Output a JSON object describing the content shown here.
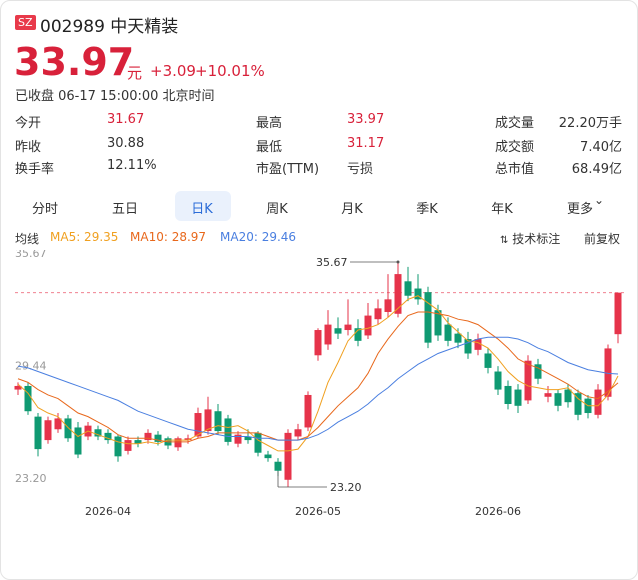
{
  "header": {
    "badge": "SZ",
    "code_name": "002989 中天精装",
    "price": 33.97,
    "unit": "元",
    "change": "+3.09",
    "change_pct": "+10.01%",
    "status": "已收盘 06-17 15:00:00 北京时间"
  },
  "stats": [
    [
      {
        "label": "今开",
        "value": 31.67,
        "red": true
      },
      {
        "label": "最高",
        "value": 33.97,
        "red": true
      },
      {
        "label": "成交量",
        "value": "22.20万手"
      }
    ],
    [
      {
        "label": "昨收",
        "value": 30.88
      },
      {
        "label": "最低",
        "value": 31.17,
        "red": true
      },
      {
        "label": "成交额",
        "value": "7.40亿"
      }
    ],
    [
      {
        "label": "换手率",
        "value": "12.11%"
      },
      {
        "label": "市盈(TTM)",
        "value": "亏损"
      },
      {
        "label": "总市值",
        "value": "68.49亿"
      }
    ]
  ],
  "tabs": [
    "分时",
    "五日",
    "日K",
    "周K",
    "月K",
    "季K",
    "年K",
    "更多"
  ],
  "active_tab": "日K",
  "indicator_bar": {
    "label": "均线",
    "tech_mark": "技术标注",
    "adjust": "前复权"
  },
  "chart_data": {
    "type": "candlestick",
    "up_color": "#e6334a",
    "down_color": "#0f9a72",
    "ylim": [
      23.2,
      35.67
    ],
    "yticks": [
      35.67,
      29.44,
      {
        "value": 23.2,
        "label": "23.20"
      }
    ],
    "high_label": "35.67",
    "low_label": "23.20",
    "categories": [
      null,
      null,
      null,
      null,
      null,
      null,
      null,
      null,
      null,
      "2026-04",
      null,
      null,
      null,
      null,
      null,
      null,
      null,
      null,
      null,
      null,
      null,
      null,
      null,
      null,
      null,
      null,
      null,
      null,
      null,
      null,
      "2026-05",
      null,
      null,
      null,
      null,
      null,
      null,
      null,
      null,
      null,
      null,
      null,
      null,
      null,
      null,
      null,
      null,
      null,
      "2026-06",
      null,
      null,
      null,
      null,
      null,
      null,
      null,
      null,
      null,
      null,
      null,
      null
    ],
    "ohlc": [
      [
        28.6,
        29.0,
        28.3,
        28.8
      ],
      [
        28.8,
        29.0,
        27.2,
        27.4
      ],
      [
        27.1,
        27.3,
        24.9,
        25.3
      ],
      [
        25.8,
        27.1,
        25.6,
        26.9
      ],
      [
        26.4,
        27.3,
        26.2,
        27.0
      ],
      [
        27.0,
        27.2,
        25.7,
        25.9
      ],
      [
        26.5,
        26.8,
        24.8,
        25.0
      ],
      [
        26.0,
        26.8,
        25.8,
        26.6
      ],
      [
        26.4,
        26.6,
        25.8,
        26.0
      ],
      [
        26.2,
        26.4,
        25.6,
        25.8
      ],
      [
        26.0,
        26.1,
        24.6,
        24.9
      ],
      [
        25.2,
        26.0,
        25.0,
        25.8
      ],
      [
        25.8,
        26.0,
        25.4,
        25.6
      ],
      [
        25.8,
        26.4,
        25.6,
        26.2
      ],
      [
        26.1,
        26.3,
        25.5,
        25.7
      ],
      [
        25.9,
        26.0,
        25.3,
        25.5
      ],
      [
        25.4,
        26.0,
        25.2,
        25.9
      ],
      [
        25.8,
        26.1,
        25.6,
        25.9
      ],
      [
        26.0,
        27.6,
        25.9,
        27.3
      ],
      [
        26.3,
        28.2,
        26.1,
        27.5
      ],
      [
        27.4,
        27.8,
        26.1,
        26.3
      ],
      [
        27.0,
        27.2,
        25.5,
        25.7
      ],
      [
        25.6,
        26.3,
        25.4,
        26.1
      ],
      [
        26.0,
        26.4,
        25.6,
        25.8
      ],
      [
        26.2,
        26.3,
        24.9,
        25.1
      ],
      [
        25.0,
        25.2,
        24.6,
        24.8
      ],
      [
        24.6,
        24.8,
        23.8,
        24.1
      ],
      [
        23.6,
        26.4,
        23.2,
        26.2
      ],
      [
        26.0,
        26.7,
        25.8,
        26.4
      ],
      [
        26.5,
        28.5,
        26.3,
        28.3
      ],
      [
        30.5,
        32.0,
        30.2,
        31.9
      ],
      [
        31.1,
        33.0,
        30.8,
        32.2
      ],
      [
        32.0,
        32.6,
        31.4,
        31.7
      ],
      [
        31.9,
        33.6,
        31.6,
        32.2
      ],
      [
        32.0,
        32.5,
        31.0,
        31.3
      ],
      [
        31.6,
        33.4,
        31.4,
        32.7
      ],
      [
        32.5,
        33.6,
        32.2,
        33.1
      ],
      [
        32.9,
        35.0,
        32.6,
        33.6
      ],
      [
        32.8,
        35.67,
        32.6,
        35.0
      ],
      [
        34.6,
        35.4,
        33.5,
        33.8
      ],
      [
        34.2,
        35.0,
        33.3,
        33.6
      ],
      [
        34.0,
        34.3,
        30.9,
        31.2
      ],
      [
        33.0,
        33.3,
        31.3,
        31.6
      ],
      [
        32.2,
        32.6,
        31.0,
        31.3
      ],
      [
        31.7,
        32.0,
        30.9,
        31.2
      ],
      [
        31.4,
        31.8,
        30.3,
        30.6
      ],
      [
        30.8,
        31.7,
        30.5,
        31.4
      ],
      [
        30.6,
        30.9,
        29.5,
        29.8
      ],
      [
        29.6,
        29.9,
        28.3,
        28.6
      ],
      [
        28.8,
        29.1,
        27.5,
        27.8
      ],
      [
        28.6,
        28.9,
        27.3,
        27.7
      ],
      [
        28.0,
        30.5,
        27.8,
        30.2
      ],
      [
        30.0,
        30.3,
        28.9,
        29.2
      ],
      [
        28.2,
        28.8,
        27.9,
        28.4
      ],
      [
        28.4,
        28.6,
        27.4,
        27.7
      ],
      [
        28.6,
        28.9,
        27.6,
        27.9
      ],
      [
        28.4,
        28.6,
        26.9,
        27.2
      ],
      [
        28.1,
        28.3,
        27.0,
        27.3
      ],
      [
        27.2,
        28.9,
        27.0,
        28.6
      ],
      [
        28.2,
        31.1,
        28.0,
        30.88
      ],
      [
        31.67,
        33.97,
        31.17,
        33.97
      ]
    ],
    "series": [
      {
        "name": "MA5",
        "legend_label": "MA5: 29.35",
        "color": "#f0a020",
        "values": [
          28.9,
          28.4,
          27.6,
          27.3,
          27.1,
          26.5,
          26.0,
          26.3,
          26.1,
          25.9,
          25.7,
          25.6,
          25.6,
          25.7,
          25.6,
          25.8,
          25.8,
          25.8,
          26.1,
          26.4,
          26.6,
          26.5,
          26.6,
          26.3,
          25.8,
          25.5,
          25.2,
          25.2,
          25.3,
          26.0,
          27.4,
          29.0,
          30.1,
          31.3,
          31.9,
          32.0,
          32.2,
          32.6,
          33.1,
          33.6,
          33.8,
          33.4,
          33.0,
          32.3,
          31.8,
          31.3,
          31.2,
          30.9,
          30.3,
          29.6,
          29.1,
          28.8,
          28.7,
          28.6,
          28.6,
          28.7,
          28.1,
          27.7,
          27.7,
          28.3,
          29.35
        ]
      },
      {
        "name": "MA10",
        "legend_label": "MA10: 28.97",
        "color": "#e8681c",
        "values": [
          29.2,
          29.0,
          28.6,
          28.3,
          28.1,
          27.7,
          27.3,
          27.1,
          26.8,
          26.5,
          26.1,
          25.9,
          25.9,
          25.9,
          25.8,
          25.7,
          25.7,
          25.7,
          25.9,
          26.0,
          26.2,
          26.2,
          26.2,
          26.2,
          26.2,
          26.0,
          25.8,
          25.8,
          25.8,
          26.0,
          26.5,
          27.1,
          27.7,
          28.2,
          28.7,
          29.5,
          30.6,
          31.4,
          32.1,
          32.7,
          32.9,
          32.9,
          32.8,
          32.7,
          32.5,
          32.4,
          32.2,
          31.8,
          31.4,
          30.9,
          30.3,
          30.0,
          29.8,
          29.5,
          29.2,
          28.9,
          28.5,
          28.2,
          28.1,
          28.5,
          28.97
        ]
      },
      {
        "name": "MA20",
        "legend_label": "MA20: 29.46",
        "color": "#4a7fe0",
        "values": [
          29.9,
          29.8,
          29.6,
          29.4,
          29.2,
          29.0,
          28.8,
          28.6,
          28.4,
          28.2,
          28.0,
          27.7,
          27.4,
          27.2,
          27.0,
          26.8,
          26.6,
          26.4,
          26.3,
          26.2,
          26.1,
          26.0,
          26.0,
          26.0,
          25.9,
          25.9,
          25.8,
          25.8,
          25.8,
          25.9,
          26.1,
          26.4,
          26.8,
          27.1,
          27.4,
          27.8,
          28.3,
          28.7,
          29.2,
          29.6,
          30.0,
          30.3,
          30.6,
          30.8,
          31.0,
          31.2,
          31.4,
          31.5,
          31.5,
          31.5,
          31.4,
          31.2,
          30.9,
          30.7,
          30.4,
          30.1,
          29.9,
          29.7,
          29.6,
          29.5,
          29.46
        ]
      }
    ]
  }
}
